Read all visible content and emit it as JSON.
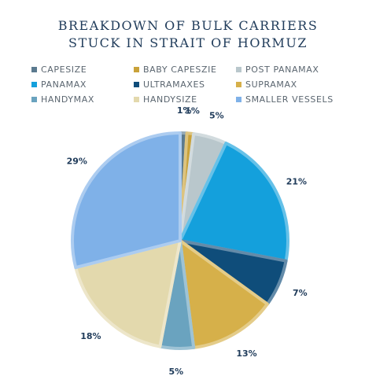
{
  "chart_data": {
    "type": "pie",
    "title_lines": [
      "BREAKDOWN OF BULK CARRIERS",
      "STUCK IN STRAIT OF HORMUZ"
    ],
    "categories": [
      "CAPESIZE",
      "BABY CAPESZIE",
      "POST PANAMAX",
      "PANAMAX",
      "ULTRAMAXES",
      "SUPRAMAX",
      "HANDYMAX",
      "HANDYSIZE",
      "SMALLER VESSELS"
    ],
    "values": [
      1,
      1,
      5,
      21,
      7,
      13,
      5,
      18,
      29
    ],
    "labels": [
      "1%",
      "1%",
      "5%",
      "21%",
      "7%",
      "13%",
      "5%",
      "18%",
      "29%"
    ],
    "colors": [
      "#5b7a8f",
      "#c9a23a",
      "#b9c7cc",
      "#14a0dc",
      "#0f4d7a",
      "#d6b04a",
      "#6aa3bf",
      "#e3d9ad",
      "#7fb1e8"
    ],
    "legend_position": "top"
  }
}
